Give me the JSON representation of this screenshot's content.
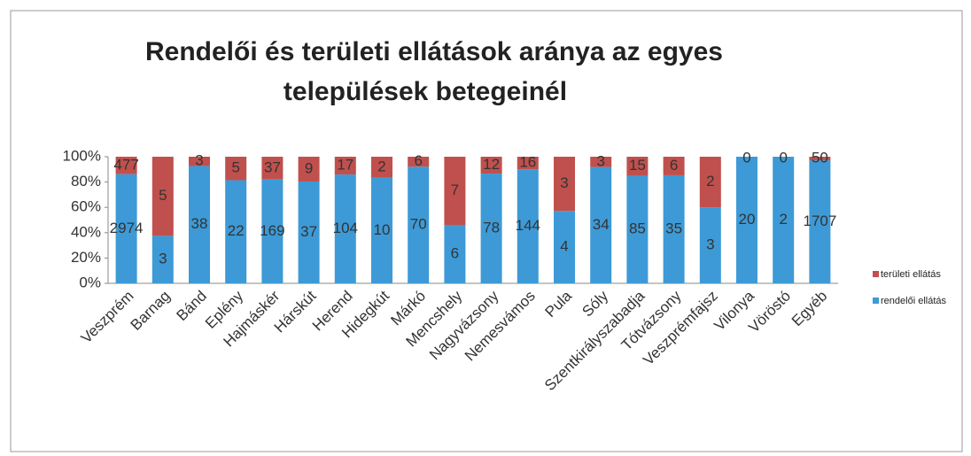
{
  "chart_data": {
    "type": "bar",
    "stacking": "percent",
    "title": "Rendelői és területi ellátások aránya az egyes települések betegeinél",
    "categories": [
      "Veszprém",
      "Barnag",
      "Bánd",
      "Eplény",
      "Hajmáskér",
      "Hárskút",
      "Herend",
      "Hidegkút",
      "Márkó",
      "Mencshely",
      "Nagyvázsony",
      "Nemesvámos",
      "Pula",
      "Sóly",
      "Szentkirályszabadja",
      "Tótvázsony",
      "Veszprémfajsz",
      "Vilonya",
      "Vöröstó",
      "Egyéb"
    ],
    "series": [
      {
        "name": "rendelői ellátás",
        "color": "#3d9ad6",
        "values": [
          2974,
          3,
          38,
          22,
          169,
          37,
          104,
          10,
          70,
          6,
          78,
          144,
          4,
          34,
          85,
          35,
          3,
          20,
          2,
          1707
        ]
      },
      {
        "name": "területi ellátás",
        "color": "#c0504d",
        "values": [
          477,
          5,
          3,
          5,
          37,
          9,
          17,
          2,
          6,
          7,
          12,
          16,
          3,
          3,
          15,
          6,
          2,
          0,
          0,
          50
        ]
      }
    ],
    "ylim": [
      0,
      100
    ],
    "yticks": [
      {
        "value": 0,
        "label": "0%"
      },
      {
        "value": 20,
        "label": "20%"
      },
      {
        "value": 40,
        "label": "40%"
      },
      {
        "value": 60,
        "label": "60%"
      },
      {
        "value": 80,
        "label": "80%"
      },
      {
        "value": 100,
        "label": "100%"
      }
    ],
    "grid": false,
    "legend": "right"
  }
}
